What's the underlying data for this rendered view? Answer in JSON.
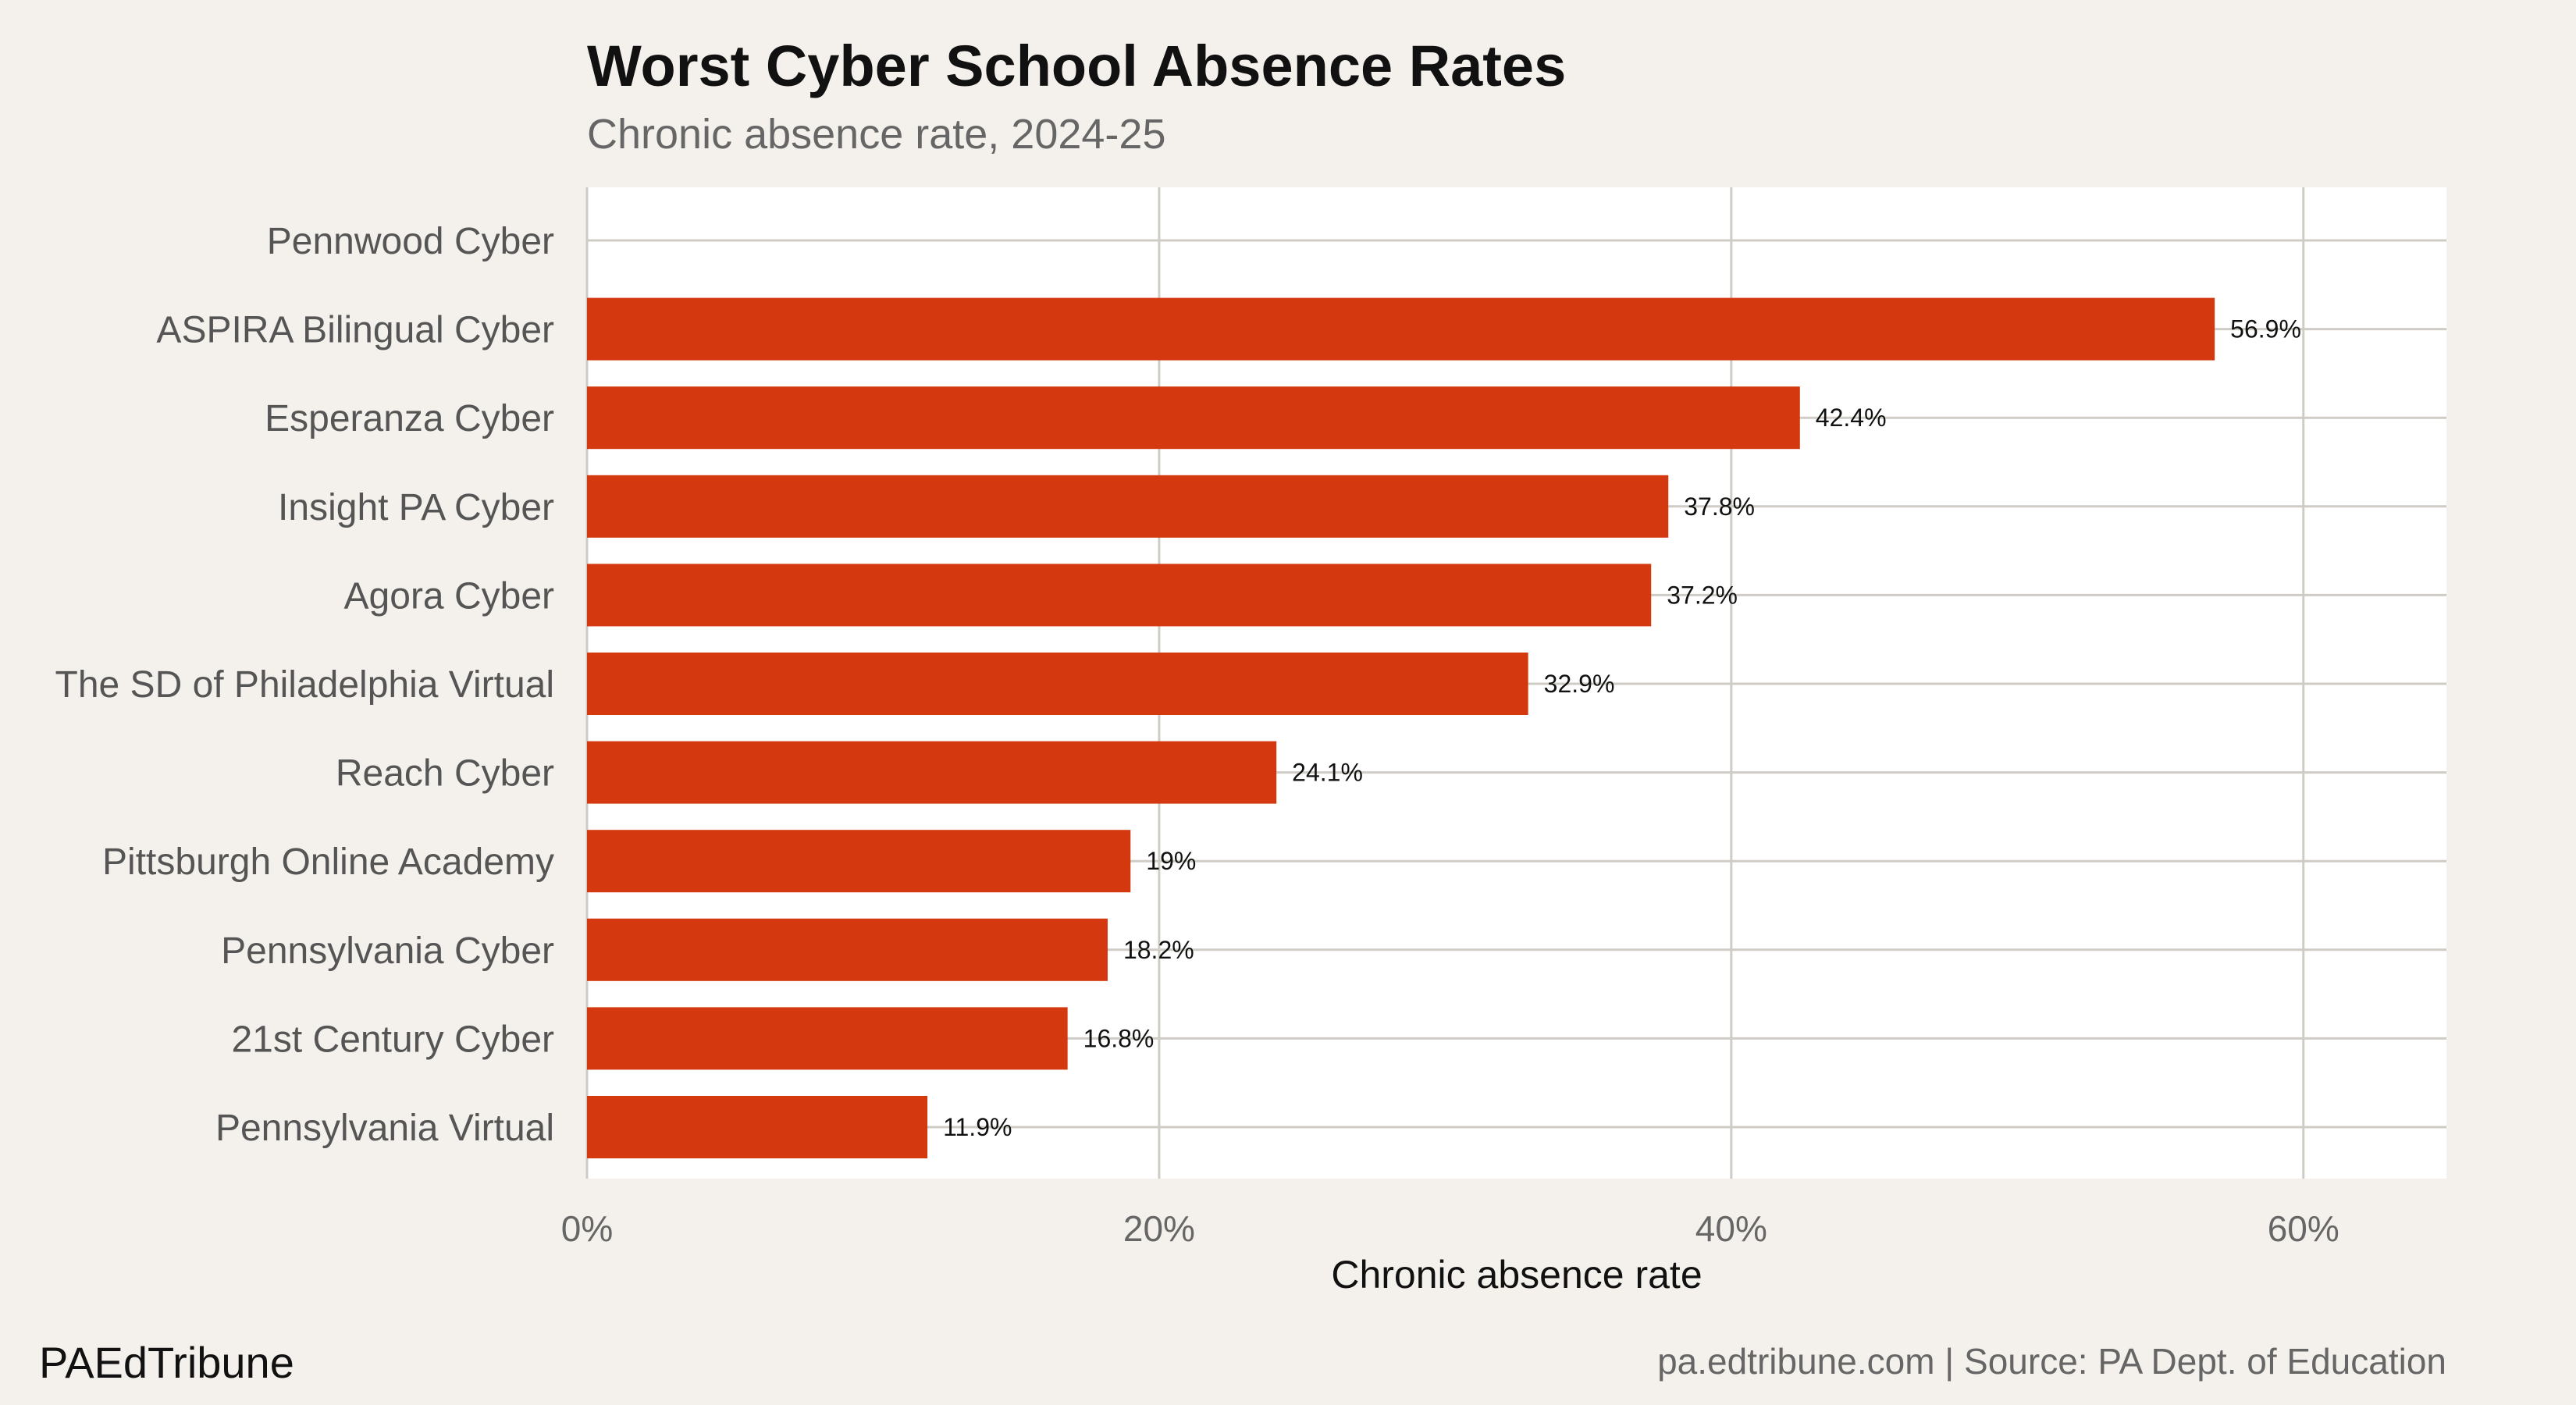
{
  "chart_data": {
    "type": "bar",
    "orientation": "horizontal",
    "title": "Worst Cyber School Absence Rates",
    "subtitle": "Chronic absence rate, 2024-25",
    "xlabel": "Chronic absence rate",
    "ylabel": "",
    "xlim": [
      0,
      65
    ],
    "xticks": [
      0,
      20,
      40,
      60
    ],
    "xtick_labels": [
      "0%",
      "20%",
      "40%",
      "60%"
    ],
    "grid": true,
    "bar_color": "#d4380e",
    "categories": [
      "Pennwood Cyber",
      "ASPIRA Bilingual Cyber",
      "Esperanza Cyber",
      "Insight PA Cyber",
      "Agora Cyber",
      "The SD of Philadelphia Virtual",
      "Reach Cyber",
      "Pittsburgh Online Academy",
      "Pennsylvania Cyber",
      "21st Century Cyber",
      "Pennsylvania Virtual"
    ],
    "values": [
      null,
      56.9,
      42.4,
      37.8,
      37.2,
      32.9,
      24.1,
      19,
      18.2,
      16.8,
      11.9
    ],
    "value_labels": [
      "",
      "56.9%",
      "42.4%",
      "37.8%",
      "37.2%",
      "32.9%",
      "24.1%",
      "19%",
      "18.2%",
      "16.8%",
      "11.9%"
    ]
  },
  "footer": {
    "brand": "PAEdTribune",
    "source": "pa.edtribune.com | Source: PA Dept. of Education"
  },
  "colors": {
    "background": "#f4f1ec",
    "panel": "#ffffff",
    "grid": "#cfccc6"
  }
}
